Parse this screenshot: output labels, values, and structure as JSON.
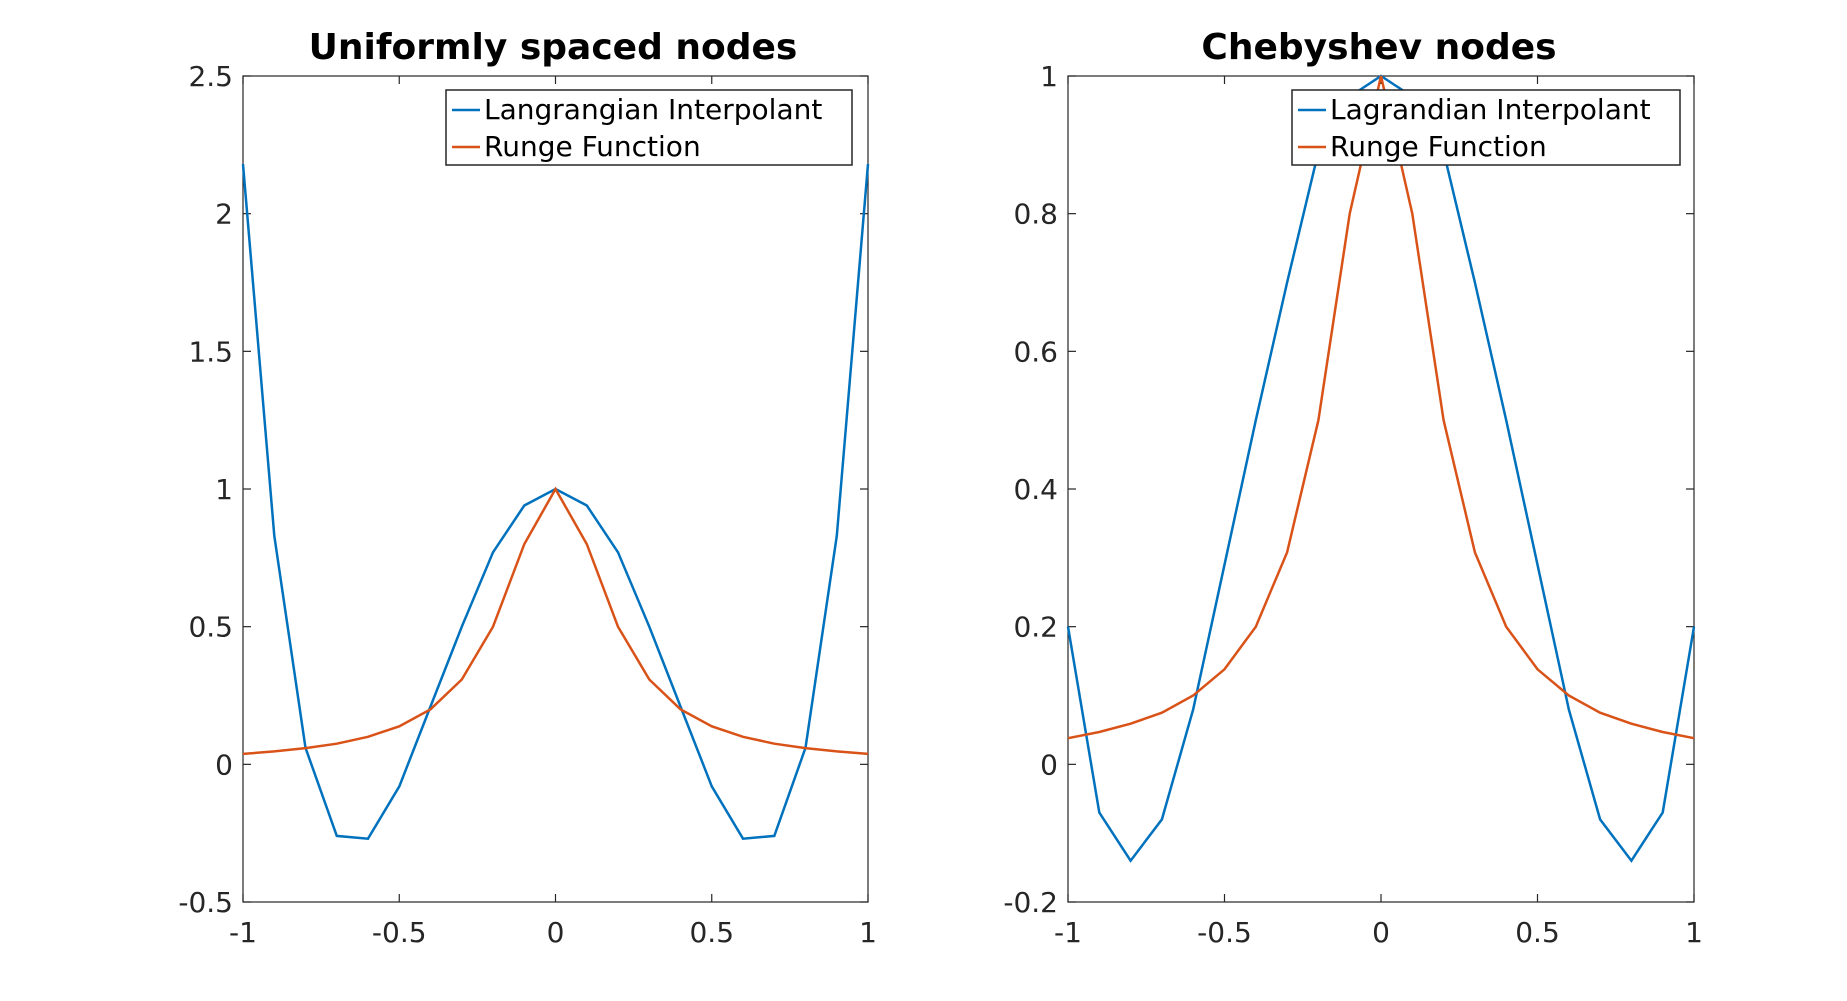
{
  "colors": {
    "interpolant": "#0072BD",
    "runge": "#D95319",
    "axes": "#262626",
    "background": "#ffffff"
  },
  "chart_data": [
    {
      "type": "line",
      "title": "Uniformly spaced nodes",
      "xlabel": "",
      "ylabel": "",
      "xlim": [
        -1,
        1
      ],
      "ylim": [
        -0.5,
        2.5
      ],
      "xticks": [
        -1,
        -0.5,
        0,
        0.5,
        1
      ],
      "xtick_labels": [
        "-1",
        "-0.5",
        "0",
        "0.5",
        "1"
      ],
      "yticks": [
        -0.5,
        0,
        0.5,
        1,
        1.5,
        2,
        2.5
      ],
      "ytick_labels": [
        "-0.5",
        "0",
        "0.5",
        "1",
        "1.5",
        "2",
        "2.5"
      ],
      "grid": false,
      "legend_position": "top-right",
      "x": [
        -1,
        -0.9,
        -0.8,
        -0.7,
        -0.6,
        -0.5,
        -0.4,
        -0.3,
        -0.2,
        -0.1,
        0,
        0.1,
        0.2,
        0.3,
        0.4,
        0.5,
        0.6,
        0.7,
        0.8,
        0.9,
        1
      ],
      "series": [
        {
          "name": "Langrangian Interpolant",
          "color": "#0072BD",
          "values": [
            2.18,
            0.83,
            0.06,
            -0.26,
            -0.27,
            -0.08,
            0.21,
            0.5,
            0.77,
            0.94,
            1.0,
            0.94,
            0.77,
            0.5,
            0.21,
            -0.08,
            -0.27,
            -0.26,
            0.06,
            0.83,
            2.18
          ]
        },
        {
          "name": "Runge Function",
          "color": "#D95319",
          "values": [
            0.038,
            0.047,
            0.059,
            0.075,
            0.1,
            0.138,
            0.2,
            0.308,
            0.5,
            0.8,
            1.0,
            0.8,
            0.5,
            0.308,
            0.2,
            0.138,
            0.1,
            0.075,
            0.059,
            0.047,
            0.038
          ]
        }
      ]
    },
    {
      "type": "line",
      "title": "Chebyshev nodes",
      "xlabel": "",
      "ylabel": "",
      "xlim": [
        -1,
        1
      ],
      "ylim": [
        -0.2,
        1
      ],
      "xticks": [
        -1,
        -0.5,
        0,
        0.5,
        1
      ],
      "xtick_labels": [
        "-1",
        "-0.5",
        "0",
        "0.5",
        "1"
      ],
      "yticks": [
        -0.2,
        0,
        0.2,
        0.4,
        0.6,
        0.8,
        1
      ],
      "ytick_labels": [
        "-0.2",
        "0",
        "0.2",
        "0.4",
        "0.6",
        "0.8",
        "1"
      ],
      "grid": false,
      "legend_position": "top-right",
      "x": [
        -1,
        -0.9,
        -0.8,
        -0.7,
        -0.6,
        -0.5,
        -0.4,
        -0.3,
        -0.2,
        -0.1,
        0,
        0.1,
        0.2,
        0.3,
        0.4,
        0.5,
        0.6,
        0.7,
        0.8,
        0.9,
        1
      ],
      "series": [
        {
          "name": "Lagrandian Interpolant",
          "color": "#0072BD",
          "values": [
            0.2,
            -0.07,
            -0.14,
            -0.08,
            0.08,
            0.29,
            0.5,
            0.7,
            0.89,
            0.97,
            1.0,
            0.97,
            0.89,
            0.7,
            0.5,
            0.29,
            0.08,
            -0.08,
            -0.14,
            -0.07,
            0.2
          ]
        },
        {
          "name": "Runge Function",
          "color": "#D95319",
          "values": [
            0.038,
            0.047,
            0.059,
            0.075,
            0.1,
            0.138,
            0.2,
            0.308,
            0.5,
            0.8,
            1.0,
            0.8,
            0.5,
            0.308,
            0.2,
            0.138,
            0.1,
            0.075,
            0.059,
            0.047,
            0.038
          ]
        }
      ]
    }
  ]
}
